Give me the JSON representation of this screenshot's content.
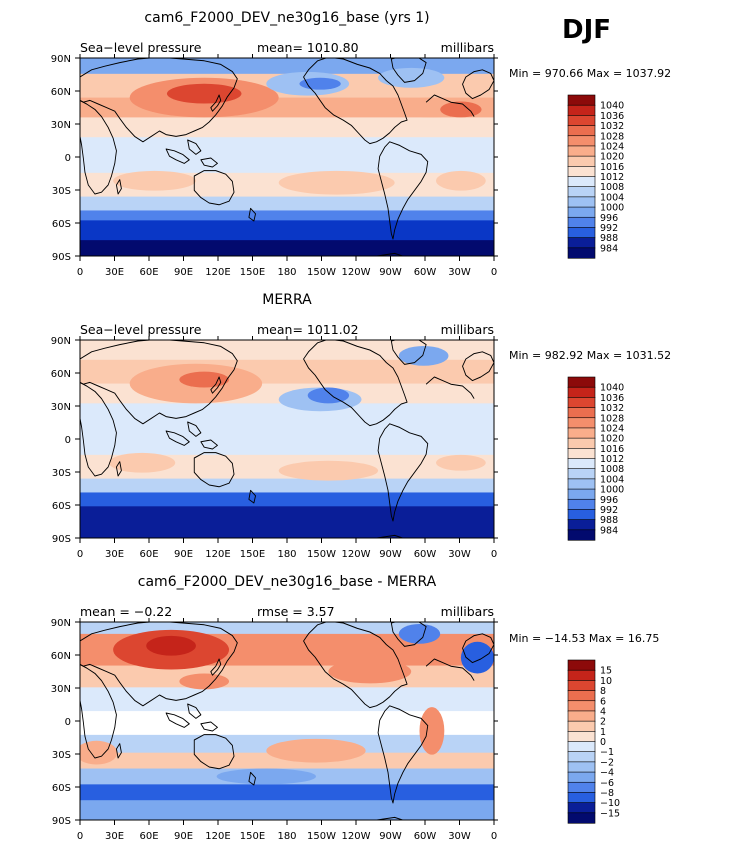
{
  "season": "DJF",
  "colors": {
    "reds": [
      "#fbe2d2",
      "#fbcaae",
      "#f9ad8b",
      "#f48e6c",
      "#eb6e4f",
      "#dc4630",
      "#c5241a",
      "#8c0a0a"
    ],
    "blues": [
      "#dbe9fb",
      "#b9d3f6",
      "#9ec1f3",
      "#7ba8ef",
      "#5082eb",
      "#285fe0",
      "#0a37c6",
      "#0a1e98",
      "#020a6e"
    ],
    "coast": "#000000"
  },
  "lon_ticks": [
    "0",
    "30E",
    "60E",
    "90E",
    "120E",
    "150E",
    "180",
    "150W",
    "120W",
    "90W",
    "60W",
    "30W",
    "0"
  ],
  "lat_ticks": [
    "90N",
    "60N",
    "30N",
    "0",
    "30S",
    "60S",
    "90S"
  ],
  "panels": [
    {
      "title": "cam6_F2000_DEV_ne30g16_base (yrs 1)",
      "left_label": "Sea−level pressure",
      "center_label": "mean= 1010.80",
      "right_label": "millibars",
      "minmax": "Min = 970.66 Max = 1037.92",
      "colorbar_levels": [
        "1040",
        "1036",
        "1032",
        "1028",
        "1024",
        "1020",
        "1016",
        "1012",
        "1008",
        "1004",
        "1000",
        "996",
        "992",
        "988",
        "984"
      ]
    },
    {
      "title": "MERRA",
      "left_label": "Sea−level pressure",
      "center_label": "mean= 1011.02",
      "right_label": "millibars",
      "minmax": "Min = 982.92 Max = 1031.52",
      "colorbar_levels": [
        "1040",
        "1036",
        "1032",
        "1028",
        "1024",
        "1020",
        "1016",
        "1012",
        "1008",
        "1004",
        "1000",
        "996",
        "992",
        "988",
        "984"
      ]
    },
    {
      "title": "cam6_F2000_DEV_ne30g16_base - MERRA",
      "left_label": "mean =   −0.22",
      "center_label": "rmse =    3.57",
      "right_label": "millibars",
      "minmax": "Min = −14.53 Max =  16.75",
      "colorbar_levels": [
        "15",
        "10",
        "8",
        "6",
        "4",
        "2",
        "1",
        "0",
        "−1",
        "−2",
        "−4",
        "−6",
        "−8",
        "−10",
        "−15"
      ]
    }
  ]
}
